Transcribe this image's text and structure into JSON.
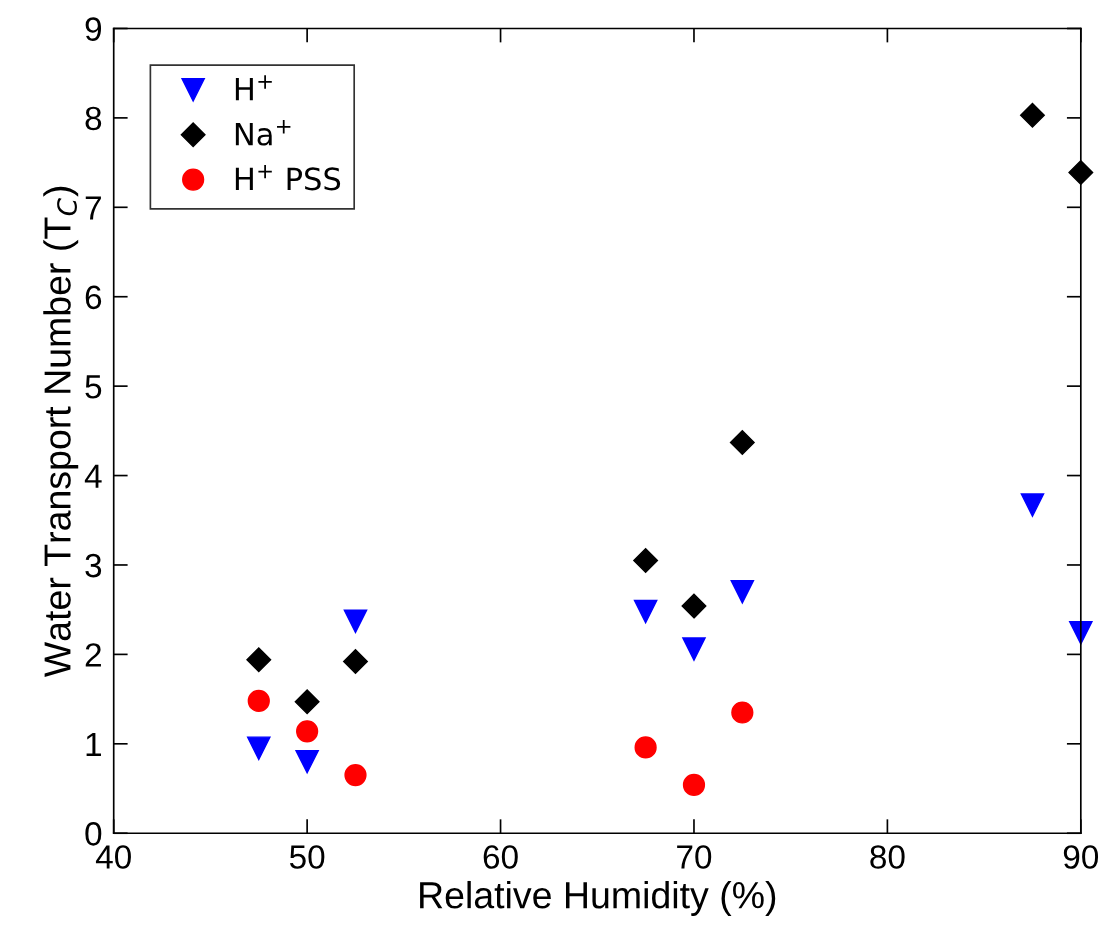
{
  "chart_data": {
    "type": "scatter",
    "xlabel": "Relative Humidity (%)",
    "ylabel": "Water Transport Number (T$_{C}$)",
    "xlim": [
      40,
      90
    ],
    "xticks": [
      40,
      50,
      60,
      70,
      80,
      90
    ],
    "ylim": [
      0,
      9
    ],
    "yticks": [
      0,
      1,
      2,
      3,
      4,
      5,
      6,
      7,
      8,
      9
    ],
    "grid": false,
    "legend": "top left",
    "series": [
      {
        "name": "H$^{+}$",
        "color": "#0000ff",
        "marker": "triangle",
        "x": [
          47.5,
          50,
          52.5,
          67.5,
          70,
          72.5,
          87.5,
          90
        ],
        "values": [
          0.95,
          0.8,
          2.37,
          2.48,
          2.06,
          2.7,
          3.67,
          2.24
        ]
      },
      {
        "name": "Na$^{+}$",
        "color": "#000000",
        "marker": "diamond",
        "x": [
          47.5,
          50,
          52.5,
          67.5,
          70,
          72.5,
          87.5,
          90
        ],
        "values": [
          1.94,
          1.47,
          1.92,
          3.05,
          2.54,
          4.37,
          8.03,
          7.39
        ]
      },
      {
        "name": "H$^{+}$ PSS",
        "color": "#ff0000",
        "marker": "circle",
        "x": [
          47.5,
          50,
          52.5,
          67.5,
          70,
          72.5
        ],
        "values": [
          1.48,
          1.14,
          0.65,
          0.96,
          0.54,
          1.35
        ]
      }
    ]
  }
}
